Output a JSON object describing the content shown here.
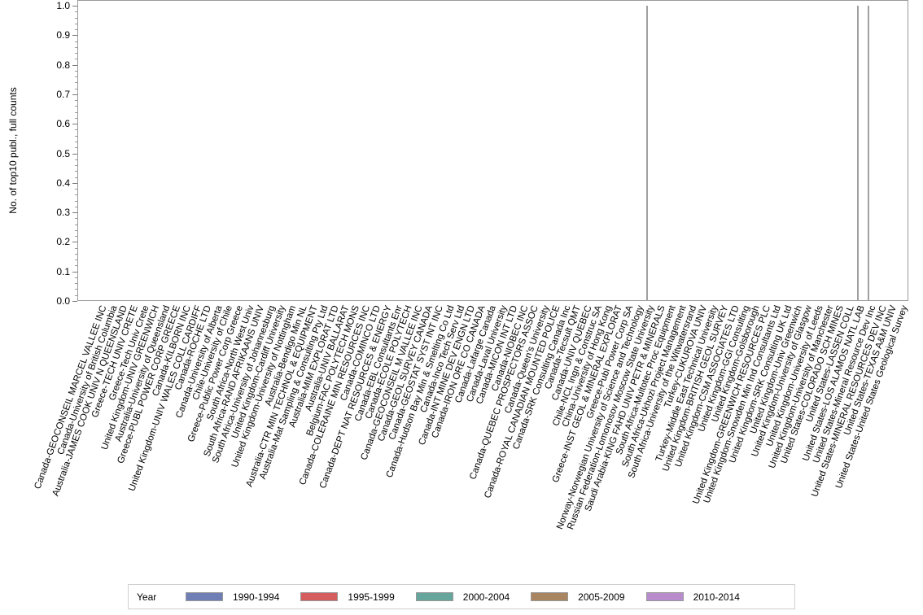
{
  "chart_data": {
    "type": "bar",
    "title": "",
    "xlabel": "",
    "ylabel": "No. of top10 publ., full counts",
    "ylim": [
      0,
      1.0
    ],
    "yticks": [
      "0.0",
      "0.1",
      "0.2",
      "0.3",
      "0.4",
      "0.5",
      "0.6",
      "0.7",
      "0.8",
      "0.9",
      "1.0"
    ],
    "grid": false,
    "legend_position": "bottom",
    "legend_title": "Year",
    "categories": [
      "Canada-GEOCONSEIL MARCEL VALLEE INC",
      "Canada-University of British Columbia",
      "Australia-JAMES COOK UNIV N QUEENSLAND",
      "Greece-TECH UNIV CRETE",
      "Greece-Tech Univ Crete",
      "United Kingdom-UNIV GREENWICH",
      "Australia-University of Queensland",
      "Greece-PUBL POWER CORP GREECE",
      "Canada-KILBORN INC",
      "United Kingdom-UNIV WALES COLL CARDIFF",
      "Canada-ROCHE LTD",
      "Canada-University of Alberta",
      "Chile-University of Chile",
      "Greece-Public Power Corp Greece",
      "South Africa-North West Univ",
      "South Africa-RAND AFRIKAANS UNIV",
      "South Africa-University of Johannesburg",
      "United Kingdom-Cardiff University",
      "United Kingdom-University of Nottingham",
      "Australia-Bendigo Min NL",
      "Australia-CTR MIN TECHNOL & EQUIPMENT",
      "Australia-Mat Sampling & Consulting Pty Ltd",
      "Australia-MIM EXPLORAT LTD",
      "Australia-UNIV BALLARAT",
      "Belgium-FAC POLYTECH MONS",
      "Canada-COLERAINE MIN RESOURCES INC",
      "Canada-COMINCO LTD",
      "Canada-DEPT NAT RESOURCES & ENERGY",
      "Canada-EBL Consultants Enr",
      "Canada-ECOLE POLYTECH",
      "Canada-GEOCONSEIL M VALLEE INC",
      "Canada-GEOL SURVEY CANADA",
      "Canada-GEOSTAT SYST INT INC",
      "Canada-Hudson Bay Min & Smelting Co Ltd",
      "Canada-Inco Tech Serv Ltd",
      "Canada-INT MINE DEV ENGN LTD",
      "Canada-IRON ORE CO CANADA",
      "Canada-Lafarge Canada",
      "Canada-Laval University",
      "Canada-MICON INT LTD",
      "Canada-NIOBEC INC",
      "Canada-QUEBEC PROSPECTORS ASSOC",
      "Canada-Queen's University",
      "Canada-ROYAL CANADIAN MOUNTED POLICE",
      "Canada-SRK Consulting Canada Inc",
      "Canada-Tecsult QMT",
      "Canada-UNIV QUEBEC",
      "Chile-NCL Ingn & Construc SA",
      "China-University of Hong Kong",
      "Greece-INST GEOL & MINERAL EXPLORAT",
      "Greece-Publ Power Corp SA",
      "Norway-Norwegian University of Science and Technology",
      "Russian Federation-Lomonosov Moscow State University",
      "Saudi Arabia-KING FAHD UNIV PETR & MINERALS",
      "South Africa-Multotec Proc Equipment",
      "South Africa-Ukhozi Project Management",
      "South Africa-University of the Witwatersrand",
      "Turkey-CUKUROVA UNIV",
      "Turkey-Middle East Technical University",
      "United Kingdom-BRITISH GEOL SURVEY",
      "United Kingdom-CSM ASSOCIATES LTD",
      "United Kingdom-GGI Consulting",
      "United Kingdom-Golsborough",
      "United Kingdom-GREENWICH RESOURCES PLC",
      "United Kingdom-Snowden Min Ind Consultants Ltd",
      "United Kingdom-SRK Consulting UK Ltd",
      "United Kingdom-Univ Greenwich",
      "United Kingdom-University of Glasgow",
      "United Kingdom-University of Leeds",
      "United Kingdom-University of Manchester",
      "United States-COLORADO SCH MINES",
      "United States-LASSEN COLL",
      "United States-LOS ALAMOS NATL LAB",
      "United States-Mineral Resource Dev Inc",
      "United States-MINERAL RESOURCES DEV INC",
      "United States-TEXAS A&M UNIV",
      "United States-United States Geological Survey"
    ],
    "series": [
      {
        "name": "1990-1994",
        "color": "#6f7fb5",
        "values": {}
      },
      {
        "name": "1995-1999",
        "color": "#d45d5d",
        "values": {}
      },
      {
        "name": "2000-2004",
        "color": "#66a59b",
        "values": {}
      },
      {
        "name": "2005-2009",
        "color": "#a88560",
        "values": {}
      },
      {
        "name": "2010-2014",
        "color": "#b98ccb",
        "values": {}
      }
    ],
    "visible_bars": [
      {
        "category": "Russian Federation-Lomonosov Moscow State University",
        "value": 1.0
      },
      {
        "category": "United States-LOS ALAMOS NATL LAB",
        "value": 1.0
      },
      {
        "category": "United States-Mineral Resource Dev Inc",
        "value": 1.0
      }
    ],
    "bar_color_rendered": "#a0a0a0"
  },
  "legend": {
    "title": "Year",
    "items": [
      {
        "label": "1990-1994",
        "color": "#6f7fb5"
      },
      {
        "label": "1995-1999",
        "color": "#d45d5d"
      },
      {
        "label": "2000-2004",
        "color": "#66a59b"
      },
      {
        "label": "2005-2009",
        "color": "#a88560"
      },
      {
        "label": "2010-2014",
        "color": "#b98ccb"
      }
    ]
  }
}
